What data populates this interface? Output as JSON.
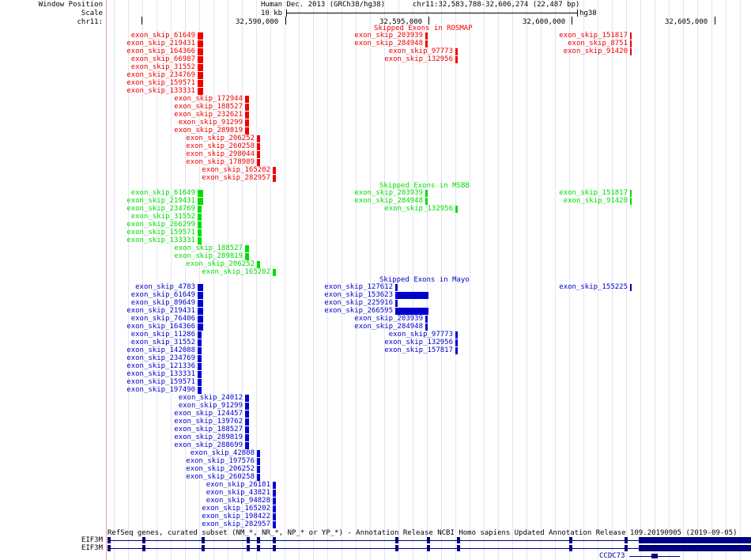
{
  "header": {
    "labels": [
      "Window Position",
      "Scale",
      "chr11:"
    ],
    "assembly": "Human Dec. 2013 (GRCh38/hg38)",
    "position": "chr11:32,583,788-32,606,274 (22,487 bp)",
    "scale_text": "10 kb",
    "scale_db": "hg38",
    "ticks": [
      "32,590,000",
      "32,595,000",
      "32,600,000",
      "32,605,000"
    ]
  },
  "colors": {
    "rosmap": "#ee0000",
    "msbb": "#00dd00",
    "mayo": "#0000cc",
    "gene": "#000080"
  },
  "tracks": [
    {
      "title": "Skipped Exons in ROSMAP",
      "color": "#ee0000",
      "features": [
        [
          "exon_skip_61649",
          250,
          257,
          0
        ],
        [
          "exon_skip_219431",
          250,
          257,
          1
        ],
        [
          "exon_skip_164366",
          250,
          257,
          2
        ],
        [
          "exon_skip_66987",
          250,
          257,
          3
        ],
        [
          "exon_skip_31552",
          250,
          257,
          4
        ],
        [
          "exon_skip_234769",
          250,
          257,
          5
        ],
        [
          "exon_skip_159571",
          250,
          257,
          6
        ],
        [
          "exon_skip_133331",
          250,
          257,
          7
        ],
        [
          "exon_skip_172944",
          310,
          315,
          8
        ],
        [
          "exon_skip_188527",
          310,
          315,
          9
        ],
        [
          "exon_skip_232621",
          310,
          315,
          10
        ],
        [
          "exon_skip_91299",
          310,
          315,
          11
        ],
        [
          "exon_skip_289819",
          310,
          315,
          12
        ],
        [
          "exon_skip_206252",
          325,
          329,
          13
        ],
        [
          "exon_skip_260258",
          325,
          329,
          14
        ],
        [
          "exon_skip_298044",
          325,
          329,
          15
        ],
        [
          "exon_skip_178989",
          325,
          329,
          16
        ],
        [
          "exon_skip_165202",
          345,
          349,
          17
        ],
        [
          "exon_skip_282957",
          345,
          349,
          18
        ],
        [
          "exon_skip_203939",
          538,
          541,
          0
        ],
        [
          "exon_skip_284948",
          538,
          541,
          1
        ],
        [
          "exon_skip_97773",
          576,
          579,
          2
        ],
        [
          "exon_skip_132956",
          576,
          579,
          3
        ],
        [
          "exon_skip_151817",
          797,
          799,
          0
        ],
        [
          "exon_skip_8751",
          797,
          799,
          1
        ],
        [
          "exon_skip_91420",
          797,
          799,
          2
        ]
      ]
    },
    {
      "title": "Skipped Exons in MSBB",
      "color": "#00dd00",
      "features": [
        [
          "exon_skip_61649",
          250,
          257,
          0
        ],
        [
          "exon_skip_219431",
          250,
          257,
          1
        ],
        [
          "exon_skip_234769",
          250,
          255,
          2
        ],
        [
          "exon_skip_31552",
          250,
          255,
          3
        ],
        [
          "exon_skip_266299",
          250,
          255,
          4
        ],
        [
          "exon_skip_159571",
          250,
          255,
          5
        ],
        [
          "exon_skip_133331",
          250,
          255,
          6
        ],
        [
          "exon_skip_188527",
          310,
          315,
          7
        ],
        [
          "exon_skip_289819",
          310,
          315,
          8
        ],
        [
          "exon_skip_206252",
          325,
          329,
          9
        ],
        [
          "exon_skip_165202",
          345,
          349,
          10
        ],
        [
          "exon_skip_203939",
          538,
          541,
          0
        ],
        [
          "exon_skip_284948",
          538,
          541,
          1
        ],
        [
          "exon_skip_132956",
          576,
          579,
          2
        ],
        [
          "exon_skip_151817",
          797,
          799,
          0
        ],
        [
          "exon_skip_91420",
          797,
          799,
          1
        ]
      ]
    },
    {
      "title": "Skipped Exons in Mayo",
      "color": "#0000cc",
      "features": [
        [
          "exon_skip_4783",
          250,
          257,
          0
        ],
        [
          "exon_skip_61649",
          250,
          257,
          1
        ],
        [
          "exon_skip_89649",
          250,
          257,
          2
        ],
        [
          "exon_skip_219431",
          250,
          257,
          3
        ],
        [
          "exon_skip_76406",
          250,
          257,
          4
        ],
        [
          "exon_skip_164366",
          250,
          257,
          5
        ],
        [
          "exon_skip_11286",
          250,
          255,
          6
        ],
        [
          "exon_skip_31552",
          250,
          255,
          7
        ],
        [
          "exon_skip_142088",
          250,
          255,
          8
        ],
        [
          "exon_skip_234769",
          250,
          255,
          9
        ],
        [
          "exon_skip_121336",
          250,
          255,
          10
        ],
        [
          "exon_skip_133331",
          250,
          255,
          11
        ],
        [
          "exon_skip_159571",
          250,
          255,
          12
        ],
        [
          "exon_skip_197490",
          250,
          255,
          13
        ],
        [
          "exon_skip_24012",
          310,
          315,
          14
        ],
        [
          "exon_skip_91299",
          310,
          315,
          15
        ],
        [
          "exon_skip_124457",
          310,
          315,
          16
        ],
        [
          "exon_skip_139762",
          310,
          315,
          17
        ],
        [
          "exon_skip_188527",
          310,
          315,
          18
        ],
        [
          "exon_skip_289819",
          310,
          315,
          19
        ],
        [
          "exon_skip_288699",
          310,
          315,
          20
        ],
        [
          "exon_skip_42808",
          325,
          329,
          21
        ],
        [
          "exon_skip_197576",
          325,
          329,
          22
        ],
        [
          "exon_skip_206252",
          325,
          329,
          23
        ],
        [
          "exon_skip_260258",
          325,
          329,
          24
        ],
        [
          "exon_skip_26181",
          345,
          349,
          25
        ],
        [
          "exon_skip_43821",
          345,
          349,
          26
        ],
        [
          "exon_skip_94828",
          345,
          349,
          27
        ],
        [
          "exon_skip_165202",
          345,
          349,
          28
        ],
        [
          "exon_skip_198422",
          345,
          349,
          29
        ],
        [
          "exon_skip_282957",
          345,
          349,
          30
        ],
        [
          "exon_skip_127612",
          500,
          503,
          0
        ],
        [
          "exon_skip_153623",
          500,
          542,
          1
        ],
        [
          "exon_skip_225916",
          500,
          503,
          2
        ],
        [
          "exon_skip_266595",
          500,
          542,
          3
        ],
        [
          "exon_skip_203939",
          538,
          541,
          4
        ],
        [
          "exon_skip_284948",
          538,
          541,
          5
        ],
        [
          "exon_skip_97773",
          576,
          579,
          6
        ],
        [
          "exon_skip_132956",
          576,
          579,
          7
        ],
        [
          "exon_skip_157817",
          576,
          579,
          8
        ],
        [
          "exon_skip_155225",
          797,
          799,
          0
        ]
      ]
    }
  ],
  "genes_track": {
    "title": "RefSeq genes, curated subset (NM_*, NR_*, NP_* or YP_*) - Annotation Release NCBI Homo sapiens Updated Annotation Release 109.20190905 (2019-09-05)",
    "genes": [
      {
        "name": "EIF3M",
        "row": 0
      },
      {
        "name": "EIF3M",
        "row": 1
      },
      {
        "name": "CCDC73",
        "row": 2
      }
    ]
  }
}
